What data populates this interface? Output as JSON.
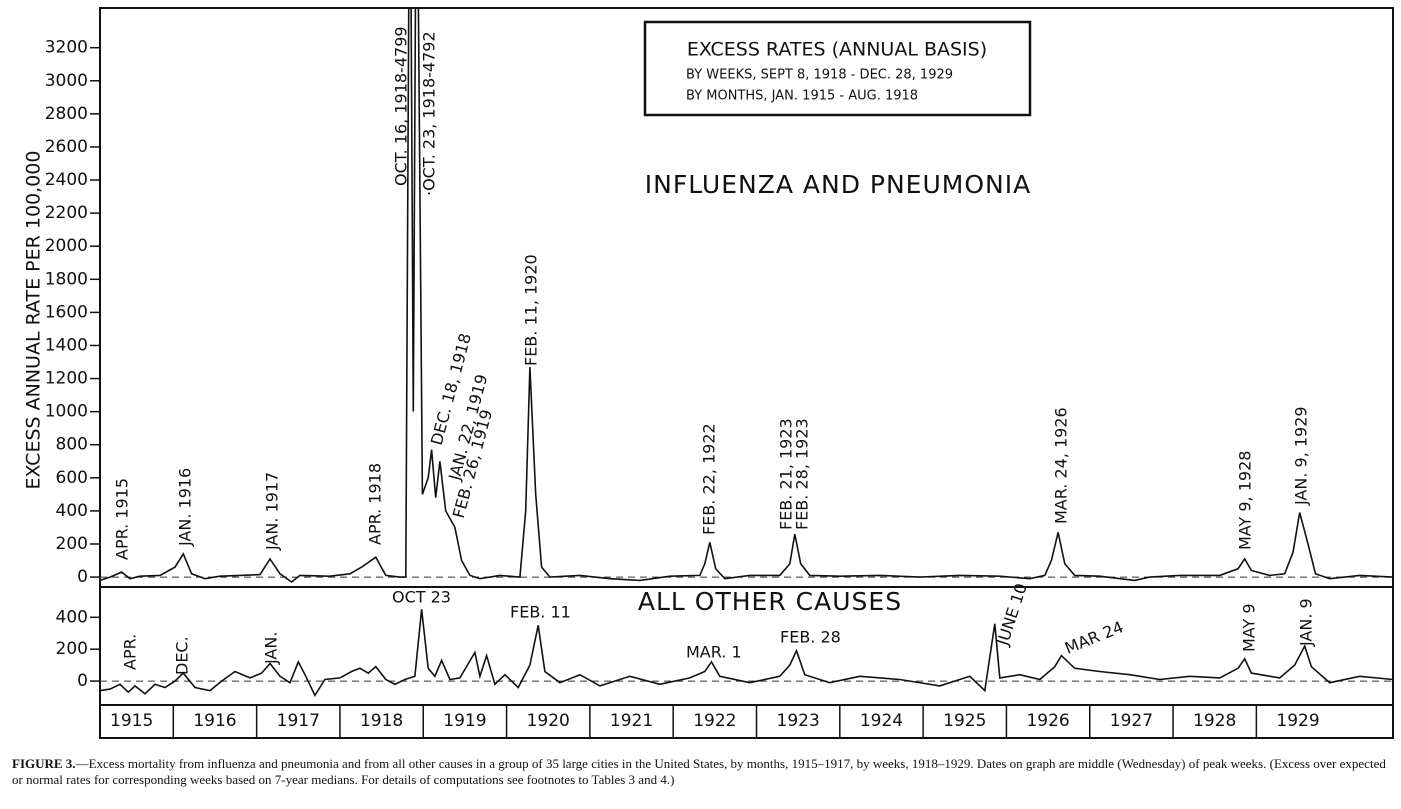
{
  "legend_box": {
    "title": "EXCESS RATES (ANNUAL BASIS)",
    "lines": [
      "BY WEEKS, SEPT 8, 1918 - DEC. 28, 1929",
      "BY MONTHS, JAN. 1915 - AUG. 1918"
    ]
  },
  "y_label": "EXCESS ANNUAL RATE PER 100,000",
  "figure_label": "FIGURE 3.",
  "caption": "—Excess mortality from influenza and pneumonia and from all other causes in a group of 35 large cities in the United States, by months, 1915–1917, by weeks, 1918–1929. Dates on graph are middle (Wednesday) of peak weeks. (Excess over expected or normal rates for corresponding weeks based on 7-year medians. For details of computations see footnotes to Tables 3 and 4.)",
  "chart_data": [
    {
      "type": "line",
      "title": "INFLUENZA AND PNEUMONIA",
      "color": "#111111",
      "xlim": [
        1915.12,
        1930.64
      ],
      "ylim": [
        -60,
        3440
      ],
      "yticks": [
        0,
        200,
        400,
        600,
        800,
        1000,
        1200,
        1400,
        1600,
        1800,
        2000,
        2200,
        2400,
        2600,
        2800,
        3000,
        3200
      ],
      "x": [
        1915.12,
        1915.24,
        1915.38,
        1915.48,
        1915.6,
        1915.84,
        1916.02,
        1916.12,
        1916.22,
        1916.38,
        1916.56,
        1916.8,
        1917.04,
        1917.16,
        1917.28,
        1917.42,
        1917.52,
        1917.88,
        1918.12,
        1918.26,
        1918.43,
        1918.55,
        1918.72,
        1918.79,
        1918.84,
        1918.88,
        1918.92,
        1918.99,
        1919.06,
        1919.1,
        1919.15,
        1919.2,
        1919.27,
        1919.38,
        1919.46,
        1919.56,
        1919.68,
        1919.92,
        1920.16,
        1920.23,
        1920.28,
        1920.35,
        1920.42,
        1920.52,
        1920.88,
        1921.24,
        1921.6,
        1921.96,
        1922.32,
        1922.38,
        1922.44,
        1922.51,
        1922.62,
        1922.92,
        1923.28,
        1923.4,
        1923.46,
        1923.53,
        1923.64,
        1924.0,
        1924.48,
        1924.96,
        1925.44,
        1925.92,
        1926.28,
        1926.46,
        1926.54,
        1926.62,
        1926.7,
        1926.82,
        1927.12,
        1927.54,
        1927.72,
        1928.08,
        1928.56,
        1928.78,
        1928.86,
        1928.94,
        1929.16,
        1929.34,
        1929.44,
        1929.52,
        1929.62,
        1929.71,
        1929.88,
        1930.24,
        1930.64
      ],
      "values": [
        -20,
        0,
        30,
        -10,
        5,
        10,
        60,
        140,
        20,
        -10,
        5,
        10,
        15,
        110,
        20,
        -30,
        10,
        5,
        20,
        60,
        120,
        10,
        0,
        0,
        4799,
        1000,
        4792,
        500,
        600,
        770,
        480,
        700,
        400,
        300,
        100,
        10,
        -10,
        10,
        0,
        400,
        1270,
        500,
        60,
        0,
        10,
        -10,
        -20,
        5,
        10,
        80,
        210,
        50,
        -10,
        10,
        10,
        80,
        260,
        80,
        10,
        5,
        10,
        0,
        10,
        5,
        -10,
        10,
        100,
        270,
        80,
        10,
        5,
        -20,
        0,
        10,
        10,
        50,
        110,
        40,
        10,
        20,
        150,
        390,
        200,
        20,
        -10,
        10,
        0
      ],
      "annotations": [
        "APR. 1915",
        "JAN. 1916",
        "JAN. 1917",
        "APR. 1918",
        "OCT. 16, 1918-4799",
        "·OCT. 23, 1918-4792",
        "DEC. 18, 1918",
        "JAN. 22, 1919",
        "FEB. 26, 1919",
        "FEB. 11, 1920",
        "FEB. 22, 1922",
        "FEB. 21, 1923",
        "FEB. 28, 1923",
        "MAR. 24, 1926",
        "MAY 9, 1928",
        "JAN. 9, 1929"
      ]
    },
    {
      "type": "line",
      "title": "ALL OTHER CAUSES",
      "color": "#111111",
      "xlim": [
        1915.12,
        1930.64
      ],
      "ylim": [
        -150,
        590
      ],
      "yticks": [
        0,
        200,
        400
      ],
      "xticks": [
        1915,
        1916,
        1917,
        1918,
        1919,
        1920,
        1921,
        1922,
        1923,
        1924,
        1925,
        1926,
        1927,
        1928,
        1929
      ],
      "x": [
        1915.12,
        1915.24,
        1915.36,
        1915.46,
        1915.54,
        1915.66,
        1915.78,
        1915.9,
        1916.02,
        1916.12,
        1916.26,
        1916.44,
        1916.58,
        1916.74,
        1916.92,
        1917.06,
        1917.16,
        1917.28,
        1917.4,
        1917.5,
        1917.59,
        1917.7,
        1917.82,
        1918.0,
        1918.14,
        1918.24,
        1918.34,
        1918.43,
        1918.55,
        1918.66,
        1918.78,
        1918.9,
        1918.98,
        1919.06,
        1919.14,
        1919.22,
        1919.32,
        1919.44,
        1919.62,
        1919.68,
        1919.76,
        1919.86,
        1919.98,
        1920.14,
        1920.28,
        1920.38,
        1920.46,
        1920.64,
        1920.88,
        1921.12,
        1921.48,
        1921.84,
        1922.2,
        1922.38,
        1922.46,
        1922.56,
        1922.92,
        1923.28,
        1923.4,
        1923.48,
        1923.58,
        1923.88,
        1924.24,
        1924.72,
        1925.2,
        1925.56,
        1925.74,
        1925.86,
        1925.92,
        1926.16,
        1926.4,
        1926.58,
        1926.66,
        1926.82,
        1927.12,
        1927.48,
        1927.84,
        1928.2,
        1928.56,
        1928.78,
        1928.86,
        1928.94,
        1929.28,
        1929.46,
        1929.58,
        1929.66,
        1929.88,
        1930.24,
        1930.64
      ],
      "values": [
        -60,
        -50,
        -20,
        -70,
        -30,
        -80,
        -20,
        -40,
        0,
        50,
        -40,
        -60,
        0,
        60,
        20,
        50,
        110,
        30,
        -10,
        120,
        30,
        -90,
        10,
        20,
        60,
        80,
        50,
        90,
        10,
        -20,
        10,
        30,
        450,
        80,
        30,
        130,
        10,
        20,
        180,
        30,
        160,
        -20,
        40,
        -40,
        100,
        350,
        60,
        -10,
        40,
        -30,
        30,
        -20,
        20,
        60,
        120,
        30,
        -10,
        30,
        100,
        190,
        40,
        -10,
        30,
        10,
        -30,
        30,
        -60,
        360,
        20,
        40,
        10,
        90,
        160,
        80,
        60,
        40,
        10,
        30,
        20,
        80,
        140,
        50,
        20,
        100,
        220,
        90,
        -10,
        30,
        10
      ],
      "annotations": [
        "OCT 23",
        "FEB. 11",
        "MAR. 1",
        "FEB. 28",
        "JUNE 10",
        "MAR 24",
        "APR.",
        "DEC.",
        "JAN.",
        "MAY 9",
        "JAN. 9"
      ]
    }
  ]
}
